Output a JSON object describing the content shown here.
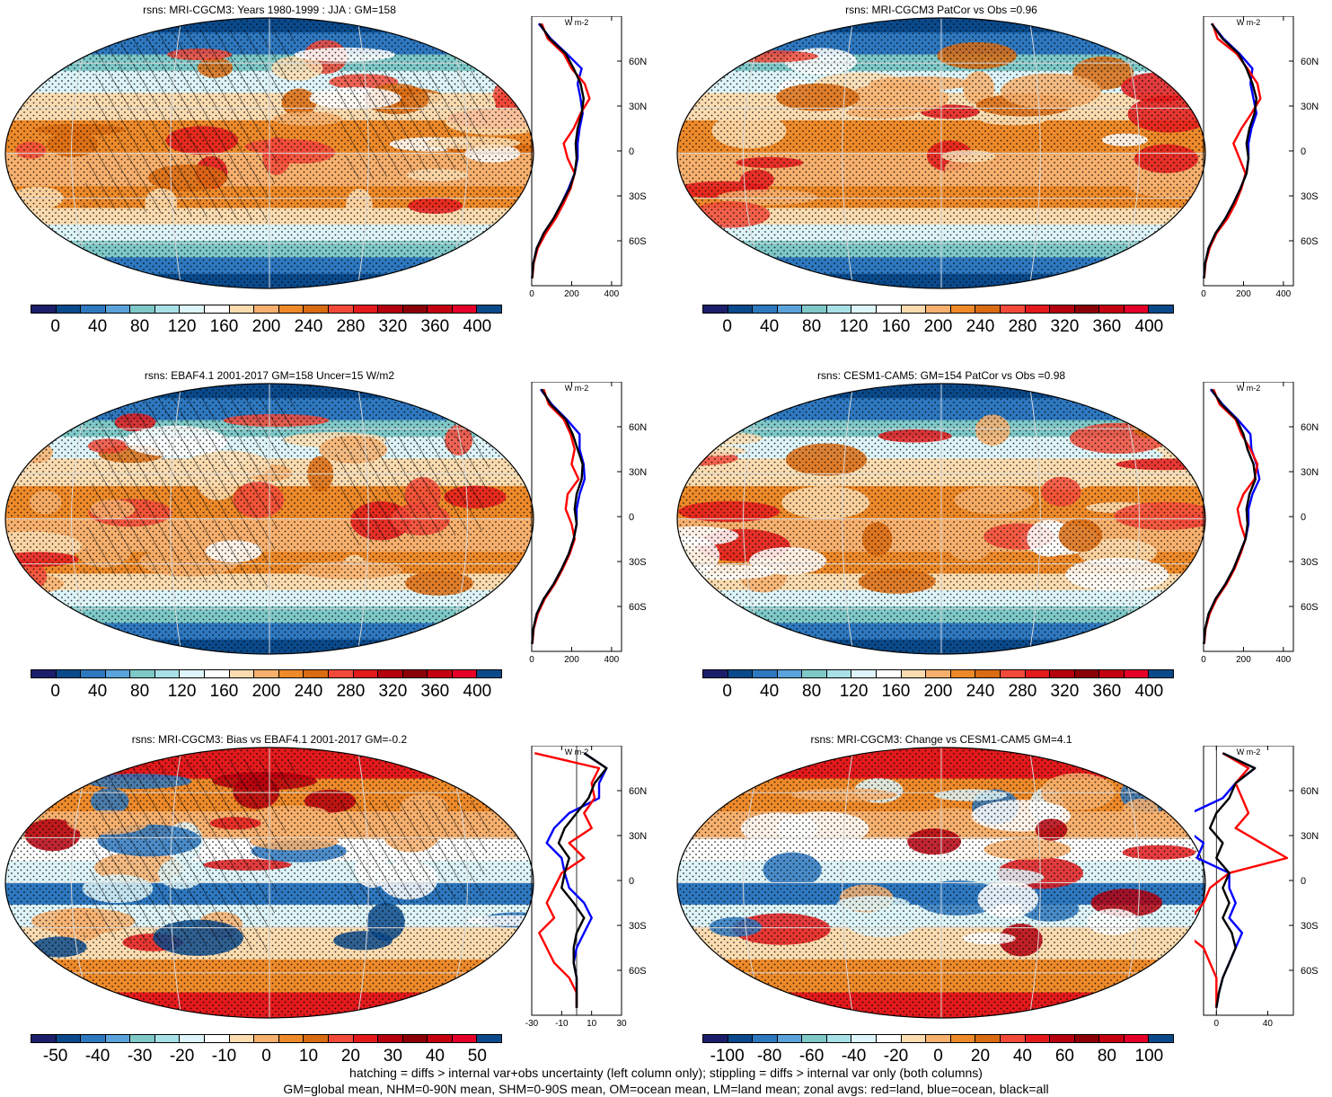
{
  "footer": {
    "line1": "hatching = diffs > internal var+obs uncertainty (left column only); stippling = diffs > internal var only (both columns)",
    "line2": "GM=global mean, NHM=0-90N mean, SHM=0-90S mean, OM=ocean mean, LM=land mean; zonal avgs: red=land, blue=ocean, black=all"
  },
  "colors": {
    "land": "#ff0000",
    "ocean": "#0000ff",
    "all": "#000000",
    "scale": [
      "#1b1f6b",
      "#0a4a8c",
      "#2e78c0",
      "#5aa3dc",
      "#7ec8c8",
      "#a8e0e8",
      "#ddf4f8",
      "#ffffff",
      "#fbdcb0",
      "#f7b06e",
      "#ee8a2a",
      "#d96b12",
      "#f24a3a",
      "#e31a1c",
      "#b5000e",
      "#8a0006",
      "#c50010",
      "#e5002a",
      "#0b4a8a"
    ]
  },
  "chart_data": [
    {
      "type": "heatmap",
      "title": "rsns: MRI-CGCM3: Years 1980-1999 : JJA : GM=158",
      "colorbar_ticks": [
        "0",
        "40",
        "80",
        "120",
        "160",
        "200",
        "240",
        "280",
        "320",
        "360",
        "400"
      ],
      "zonal": {
        "xticks": [
          "0",
          "200",
          "400"
        ],
        "xlim": [
          0,
          450
        ],
        "unit": "W m-2",
        "lat_ticks": [
          "60N",
          "30N",
          "0",
          "30S",
          "60S"
        ],
        "lat": [
          85,
          75,
          65,
          55,
          45,
          35,
          25,
          15,
          5,
          -5,
          -15,
          -25,
          -35,
          -45,
          -55,
          -65,
          -75,
          -85
        ],
        "all": [
          40,
          90,
          170,
          210,
          245,
          260,
          250,
          230,
          220,
          225,
          215,
          190,
          150,
          110,
          60,
          25,
          8,
          2
        ],
        "land": [
          50,
          80,
          160,
          200,
          265,
          290,
          245,
          210,
          160,
          180,
          215,
          195,
          160,
          120,
          70,
          30,
          10,
          3
        ],
        "ocean": [
          35,
          95,
          175,
          250,
          230,
          245,
          255,
          240,
          230,
          230,
          215,
          185,
          150,
          110,
          60,
          25,
          8,
          2
        ]
      }
    },
    {
      "type": "heatmap",
      "title": "rsns: MRI-CGCM3 PatCor vs Obs =0.96",
      "colorbar_ticks": [
        "0",
        "40",
        "80",
        "120",
        "160",
        "200",
        "240",
        "280",
        "320",
        "360",
        "400"
      ],
      "zonal": {
        "xticks": [
          "0",
          "200",
          "400"
        ],
        "xlim": [
          0,
          450
        ],
        "unit": "W m-2",
        "lat_ticks": [
          "60N",
          "30N",
          "0",
          "30S",
          "60S"
        ],
        "lat": [
          85,
          75,
          65,
          55,
          45,
          35,
          25,
          15,
          5,
          -5,
          -15,
          -25,
          -35,
          -45,
          -55,
          -65,
          -75,
          -85
        ],
        "all": [
          40,
          95,
          175,
          215,
          245,
          265,
          255,
          230,
          215,
          225,
          215,
          185,
          150,
          110,
          60,
          25,
          8,
          2
        ],
        "land": [
          45,
          70,
          165,
          220,
          270,
          285,
          240,
          190,
          150,
          180,
          210,
          190,
          160,
          120,
          65,
          30,
          10,
          3
        ],
        "ocean": [
          40,
          100,
          180,
          245,
          235,
          250,
          265,
          240,
          225,
          225,
          215,
          185,
          150,
          110,
          60,
          25,
          8,
          2
        ]
      }
    },
    {
      "type": "heatmap",
      "title": "rsns: EBAF4.1 2001-2017 GM=158 Uncer=15 W/m2",
      "colorbar_ticks": [
        "0",
        "40",
        "80",
        "120",
        "160",
        "200",
        "240",
        "280",
        "320",
        "360",
        "400"
      ],
      "zonal": {
        "xticks": [
          "0",
          "200",
          "400"
        ],
        "xlim": [
          0,
          450
        ],
        "unit": "W m-2",
        "lat_ticks": [
          "60N",
          "30N",
          "0",
          "30S",
          "60S"
        ],
        "lat": [
          85,
          75,
          65,
          55,
          45,
          35,
          25,
          15,
          5,
          -5,
          -15,
          -25,
          -35,
          -45,
          -55,
          -65,
          -75,
          -85
        ],
        "all": [
          50,
          95,
          170,
          205,
          230,
          255,
          250,
          225,
          215,
          225,
          210,
          185,
          150,
          110,
          60,
          25,
          8,
          2
        ],
        "land": [
          60,
          85,
          160,
          195,
          215,
          200,
          235,
          180,
          170,
          200,
          215,
          190,
          155,
          115,
          65,
          30,
          10,
          3
        ],
        "ocean": [
          45,
          100,
          175,
          240,
          240,
          260,
          265,
          240,
          225,
          225,
          210,
          185,
          150,
          110,
          60,
          25,
          8,
          2
        ]
      }
    },
    {
      "type": "heatmap",
      "title": "rsns: CESM1-CAM5: GM=154 PatCor vs Obs =0.98",
      "colorbar_ticks": [
        "0",
        "40",
        "80",
        "120",
        "160",
        "200",
        "240",
        "280",
        "320",
        "360",
        "400"
      ],
      "zonal": {
        "xticks": [
          "0",
          "200",
          "400"
        ],
        "xlim": [
          0,
          450
        ],
        "unit": "W m-2",
        "lat_ticks": [
          "60N",
          "30N",
          "0",
          "30S",
          "60S"
        ],
        "lat": [
          85,
          75,
          65,
          55,
          45,
          35,
          25,
          15,
          5,
          -5,
          -15,
          -25,
          -35,
          -45,
          -55,
          -65,
          -75,
          -85
        ],
        "all": [
          40,
          90,
          165,
          200,
          220,
          250,
          260,
          230,
          215,
          220,
          210,
          180,
          150,
          110,
          60,
          25,
          8,
          2
        ],
        "land": [
          50,
          80,
          160,
          190,
          235,
          270,
          255,
          200,
          170,
          185,
          210,
          185,
          155,
          115,
          65,
          30,
          10,
          3
        ],
        "ocean": [
          35,
          95,
          170,
          235,
          240,
          265,
          280,
          245,
          225,
          225,
          210,
          180,
          150,
          110,
          60,
          25,
          8,
          2
        ]
      }
    },
    {
      "type": "heatmap",
      "title": "rsns: MRI-CGCM3: Bias vs EBAF4.1 2001-2017 GM=-0.2",
      "colorbar_ticks": [
        "-50",
        "-40",
        "-30",
        "-20",
        "-10",
        "0",
        "10",
        "20",
        "30",
        "40",
        "50"
      ],
      "zonal": {
        "xticks": [
          "-30",
          "-10",
          "10",
          "30"
        ],
        "xlim": [
          -30,
          30
        ],
        "unit": "W m-2",
        "lat_ticks": [
          "60N",
          "30N",
          "0",
          "30S",
          "60S"
        ],
        "lat": [
          85,
          75,
          65,
          55,
          45,
          35,
          25,
          15,
          5,
          -5,
          -15,
          -25,
          -35,
          -45,
          -55,
          -65,
          -75,
          -85
        ],
        "all": [
          5,
          20,
          12,
          8,
          0,
          -8,
          -12,
          -5,
          -8,
          -10,
          -2,
          5,
          0,
          -2,
          -2,
          0,
          0,
          0
        ],
        "land": [
          -28,
          15,
          10,
          12,
          5,
          10,
          -5,
          5,
          -10,
          -15,
          -20,
          -15,
          -25,
          -20,
          -15,
          -5,
          0,
          0
        ],
        "ocean": [
          5,
          20,
          15,
          15,
          -5,
          -15,
          -20,
          -10,
          -8,
          -5,
          5,
          10,
          5,
          0,
          -2,
          0,
          0,
          0
        ]
      }
    },
    {
      "type": "heatmap",
      "title": "rsns: MRI-CGCM3: Change vs CESM1-CAM5 GM=4.1",
      "colorbar_ticks": [
        "-100",
        "-80",
        "-60",
        "-40",
        "-20",
        "0",
        "20",
        "40",
        "60",
        "80",
        "100"
      ],
      "zonal": {
        "xticks": [
          "0",
          "40"
        ],
        "xlim": [
          -10,
          60
        ],
        "unit": "W m-2",
        "lat_ticks": [
          "60N",
          "30N",
          "0",
          "30S",
          "60S"
        ],
        "lat": [
          85,
          75,
          65,
          55,
          45,
          35,
          25,
          15,
          5,
          -5,
          -15,
          -25,
          -35,
          -45,
          -55,
          -65,
          -75,
          -85
        ],
        "all": [
          5,
          30,
          15,
          10,
          0,
          -5,
          5,
          0,
          10,
          5,
          10,
          5,
          12,
          15,
          10,
          5,
          2,
          0
        ],
        "land": [
          5,
          25,
          15,
          20,
          25,
          15,
          35,
          55,
          10,
          -5,
          -10,
          -20,
          -25,
          -10,
          -5,
          0,
          0,
          0
        ],
        "ocean": [
          5,
          30,
          15,
          5,
          -20,
          -25,
          -10,
          -15,
          10,
          10,
          15,
          10,
          20,
          15,
          10,
          5,
          2,
          0
        ]
      }
    }
  ]
}
